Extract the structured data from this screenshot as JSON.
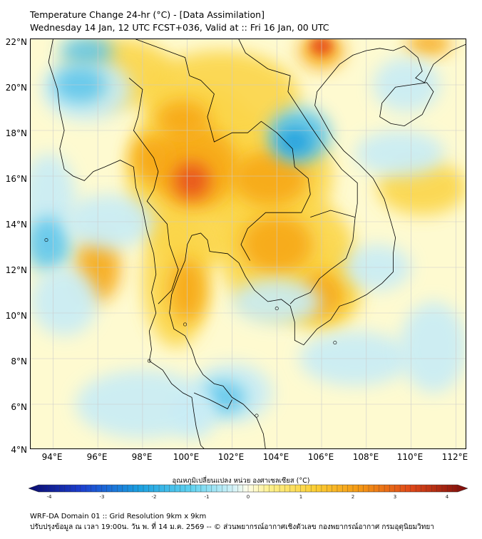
{
  "header": {
    "title": "Temperature Change 24-hr (°C) - [Data Assimilation]",
    "subtitle": "Wednesday 14 Jan, 12 UTC FCST+036, Valid at :: Fri 16 Jan, 00 UTC"
  },
  "map": {
    "lat_range": [
      4,
      22
    ],
    "lon_range": [
      93,
      112.5
    ],
    "lat_labels": [
      "22°N",
      "20°N",
      "18°N",
      "16°N",
      "14°N",
      "12°N",
      "10°N",
      "8°N",
      "6°N",
      "4°N"
    ],
    "lon_labels": [
      "94°E",
      "96°E",
      "98°E",
      "100°E",
      "102°E",
      "104°E",
      "106°E",
      "108°E",
      "110°E",
      "112°E"
    ],
    "grid": true,
    "colors": {
      "strong_warm": "#e8501e",
      "warm": "#f7a818",
      "mild_warm": "#fbd54a",
      "neutral": "#fefad0",
      "mild_cool": "#c8ecf6",
      "cool": "#5fc6ec",
      "strong_cool": "#1a9fe0"
    }
  },
  "colorbar": {
    "label": "อุณหภูมิเปลี่ยนแปลง หน่วย องศาเซลเซียส (°C)",
    "ticks": [
      "-4",
      "-3",
      "-2",
      "-1",
      "0",
      "1",
      "2",
      "3",
      "4"
    ],
    "range": [
      -4,
      4
    ]
  },
  "footer": {
    "line1": "WRF-DA Domain 01 :: Grid Resolution 9km x 9km",
    "line2": "ปรับปรุงข้อมูล ณ เวลา 19:00น. วัน พ. ที่ 14 ม.ค. 2569 -- © ส่วนพยากรณ์อากาศเชิงตัวเลข กองพยากรณ์อากาศ กรมอุตุนิยมวิทยา"
  }
}
